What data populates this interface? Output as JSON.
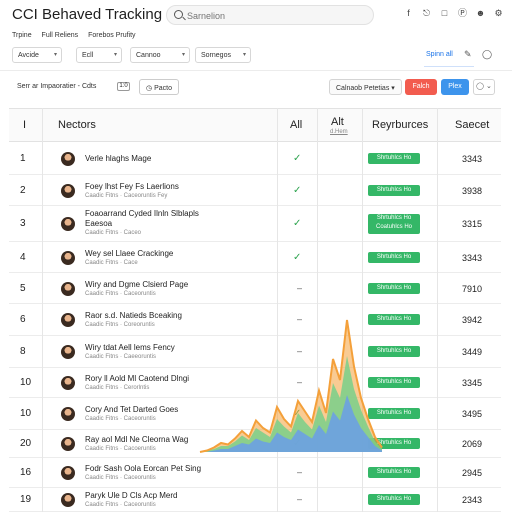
{
  "header": {
    "title": "CCI Behaved Tracking",
    "search_placeholder": "Sarnelion",
    "icons": [
      "f-icon",
      "share-icon",
      "bookmark-icon",
      "pinterest-icon",
      "user-icon",
      "settings-icon"
    ]
  },
  "subnav": {
    "items": [
      "Trpine",
      "Full Reliens",
      "Forebos Prufity"
    ]
  },
  "toolbar": {
    "dropdown1": "Avcide",
    "dropdown2": "Ecll",
    "dropdown3": "Cannoo",
    "dropdown4": "Sornegos",
    "link": "Spinn all"
  },
  "filterbar": {
    "text": "Serr ar Impaoratier - Cdts",
    "toggle": "1:0",
    "status": "Pacto",
    "btn_gray": "Calnaob Petetias",
    "btn_red": "Falch",
    "btn_blue": "Plex"
  },
  "table": {
    "headers": {
      "num": "I",
      "name": "Nectors",
      "all": "All",
      "alt": "Alt",
      "alt_sub": "d.Hem",
      "rev": "Reyrburces",
      "sec": "Saecet"
    },
    "rows": [
      {
        "num": "1",
        "title": "Verle hlaghs Mage",
        "meta": "",
        "status": "check",
        "badge": "Shrtuhlcs Ho",
        "score": "3343"
      },
      {
        "num": "2",
        "title": "Foey lhst Fey Fs Laerlions",
        "meta": "Caadic Fitns  ·  Caceoruntis Fey",
        "status": "check",
        "badge": "Shrtuhlcs Ho",
        "score": "3938"
      },
      {
        "num": "3",
        "title": "Foaoarrand Cyded Ilnln Slblapls Eaesoa",
        "meta": "Caadic Fitns  ·  Caceo",
        "status": "check",
        "badge": "Shrtuhlcs Ho Coatuhlcs Ho",
        "score": "3315"
      },
      {
        "num": "4",
        "title": "Wey sel Llaee Crackinge",
        "meta": "Caadic Fitns  ·  Cace",
        "status": "check",
        "badge": "Shrtuhlcs Ho",
        "score": "3343"
      },
      {
        "num": "5",
        "title": "Wiry and Dgme Clsierd Page",
        "meta": "Caadic Fitns  ·  Caceoruntis",
        "status": "dash",
        "badge": "Shrtuhlcs Ho",
        "score": "7910"
      },
      {
        "num": "6",
        "title": "Raor s.d. Natieds Bceaking",
        "meta": "Caadic Fitns  ·  Coreoruntis",
        "status": "dash",
        "badge": "Shrtuhlcs Ho",
        "score": "3942"
      },
      {
        "num": "8",
        "title": "Wiry tdat Aell lems Fency",
        "meta": "Caadic Fitns  ·  Caeeoruntis",
        "status": "dash",
        "badge": "Shrtuhlcs Ho",
        "score": "3449"
      },
      {
        "num": "10",
        "title": "Rory ll Aold Ml Caotend Dlngi",
        "meta": "Caadic Fitns  ·  Cerorlntis",
        "status": "dash",
        "badge": "Shrtuhlcs Ho",
        "score": "3345"
      },
      {
        "num": "10",
        "title": "Cory And Tet Darted Goes",
        "meta": "Caadic Fitns  ·  Caceoruntis",
        "status": "check",
        "badge": "Shrtuhlcs Ho",
        "score": "3495"
      },
      {
        "num": "20",
        "title": "Ray aol Mdl Ne Cleorna Wag",
        "meta": "Caadic Fitns  ·  Cacoeruntis",
        "status": "check",
        "badge": "Shrtuhlcs Ho",
        "score": "2069"
      },
      {
        "num": "16",
        "title": "Fodr Sash Oola Eorcan Pet Sing",
        "meta": "Caadic Fitns  ·  Caceoruntis",
        "status": "dash",
        "badge": "Shrtuhlcs Ho",
        "score": "2945"
      },
      {
        "num": "19",
        "title": "Paryk Ule D Cls Acp Merd",
        "meta": "Caadic Fitns  ·  Caceoruntis",
        "status": "dash",
        "badge": "Shrtuhlcs Ho",
        "score": "2343"
      }
    ]
  },
  "overlay_chart": {
    "type": "area",
    "series_orange": [
      0,
      1,
      3,
      6,
      5,
      9,
      14,
      10,
      21,
      16,
      13,
      30,
      22,
      17,
      34,
      27,
      20,
      41,
      26,
      62,
      48,
      88,
      57,
      36,
      22,
      10,
      3
    ],
    "series_green": [
      0,
      1,
      2,
      4,
      4,
      7,
      11,
      8,
      16,
      13,
      10,
      22,
      17,
      13,
      26,
      20,
      15,
      31,
      20,
      46,
      36,
      64,
      42,
      28,
      17,
      7,
      2
    ],
    "series_blue": [
      0,
      0,
      1,
      2,
      2,
      4,
      6,
      5,
      9,
      7,
      6,
      13,
      10,
      8,
      15,
      12,
      9,
      18,
      12,
      27,
      21,
      38,
      25,
      16,
      10,
      4,
      1
    ],
    "colors": {
      "orange": "#f4a03a",
      "green": "#79d08a",
      "blue": "#6a9ee8"
    }
  }
}
